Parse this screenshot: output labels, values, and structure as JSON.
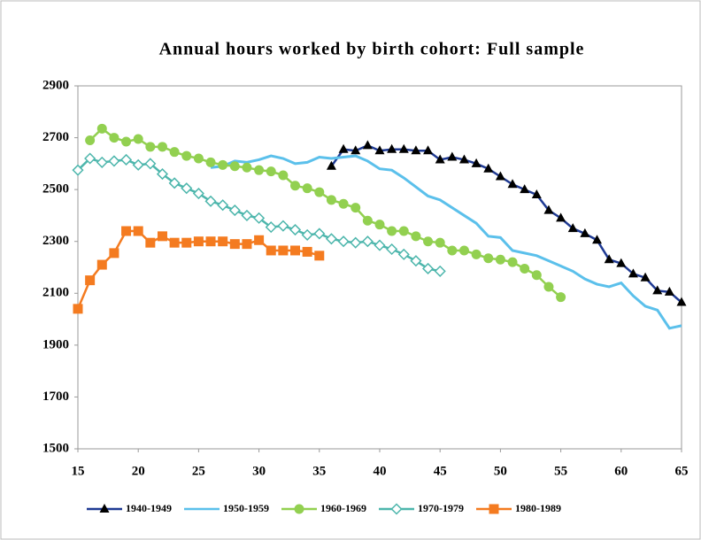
{
  "chart_data": {
    "type": "line",
    "title": "Annual hours worked by birth cohort: Full sample",
    "xlim": [
      15,
      65
    ],
    "xticks": [
      15,
      20,
      25,
      30,
      35,
      40,
      45,
      50,
      55,
      60,
      65
    ],
    "ylim": [
      1500,
      2900
    ],
    "yticks": [
      1500,
      1700,
      1900,
      2100,
      2300,
      2500,
      2700,
      2900
    ],
    "grid": false,
    "legend": "bottom",
    "series": [
      {
        "name": "1940-1949",
        "color": "#1f3a93",
        "marker": "triangle",
        "marker_color": "#000000",
        "x": [
          36,
          37,
          38,
          39,
          40,
          41,
          42,
          43,
          44,
          45,
          46,
          47,
          48,
          49,
          50,
          51,
          52,
          53,
          54,
          55,
          56,
          57,
          58,
          59,
          60,
          61,
          62,
          63,
          64,
          65
        ],
        "values": [
          2590,
          2655,
          2650,
          2670,
          2650,
          2655,
          2655,
          2650,
          2650,
          2615,
          2625,
          2615,
          2600,
          2580,
          2550,
          2520,
          2500,
          2480,
          2420,
          2390,
          2350,
          2330,
          2305,
          2230,
          2215,
          2175,
          2160,
          2110,
          2105,
          2065
        ]
      },
      {
        "name": "1950-1959",
        "color": "#5bc0eb",
        "marker": "none",
        "marker_color": "#5bc0eb",
        "x": [
          26,
          27,
          28,
          29,
          30,
          31,
          32,
          33,
          34,
          35,
          36,
          37,
          38,
          39,
          40,
          41,
          42,
          43,
          44,
          45,
          46,
          47,
          48,
          49,
          50,
          51,
          52,
          53,
          54,
          55,
          56,
          57,
          58,
          59,
          60,
          61,
          62,
          63,
          64,
          65
        ],
        "values": [
          2585,
          2590,
          2610,
          2605,
          2615,
          2630,
          2620,
          2600,
          2605,
          2625,
          2620,
          2625,
          2630,
          2610,
          2580,
          2575,
          2545,
          2510,
          2475,
          2460,
          2430,
          2400,
          2370,
          2320,
          2315,
          2265,
          2255,
          2245,
          2225,
          2205,
          2185,
          2155,
          2135,
          2125,
          2140,
          2090,
          2050,
          2035,
          1965,
          1975
        ]
      },
      {
        "name": "1960-1969",
        "color": "#92d050",
        "marker": "circle",
        "marker_color": "#92d050",
        "x": [
          16,
          17,
          18,
          19,
          20,
          21,
          22,
          23,
          24,
          25,
          26,
          27,
          28,
          29,
          30,
          31,
          32,
          33,
          34,
          35,
          36,
          37,
          38,
          39,
          40,
          41,
          42,
          43,
          44,
          45,
          46,
          47,
          48,
          49,
          50,
          51,
          52,
          53,
          54,
          55
        ],
        "values": [
          2690,
          2735,
          2700,
          2685,
          2695,
          2665,
          2665,
          2645,
          2630,
          2620,
          2605,
          2595,
          2590,
          2585,
          2575,
          2570,
          2555,
          2515,
          2505,
          2490,
          2460,
          2445,
          2430,
          2380,
          2365,
          2340,
          2340,
          2320,
          2300,
          2295,
          2265,
          2265,
          2250,
          2235,
          2230,
          2220,
          2195,
          2170,
          2125,
          2085
        ]
      },
      {
        "name": "1970-1979",
        "color": "#4db6ac",
        "marker": "diamond",
        "marker_color": "#4db6ac",
        "x": [
          15,
          16,
          17,
          18,
          19,
          20,
          21,
          22,
          23,
          24,
          25,
          26,
          27,
          28,
          29,
          30,
          31,
          32,
          33,
          34,
          35,
          36,
          37,
          38,
          39,
          40,
          41,
          42,
          43,
          44,
          45
        ],
        "values": [
          2575,
          2620,
          2605,
          2610,
          2615,
          2595,
          2600,
          2560,
          2525,
          2505,
          2485,
          2455,
          2440,
          2420,
          2400,
          2390,
          2355,
          2360,
          2345,
          2325,
          2330,
          2310,
          2300,
          2295,
          2300,
          2285,
          2270,
          2250,
          2225,
          2195,
          2185
        ]
      },
      {
        "name": "1980-1989",
        "color": "#f47b20",
        "marker": "square",
        "marker_color": "#f47b20",
        "x": [
          15,
          16,
          17,
          18,
          19,
          20,
          21,
          22,
          23,
          24,
          25,
          26,
          27,
          28,
          29,
          30,
          31,
          32,
          33,
          34,
          35
        ],
        "values": [
          2040,
          2150,
          2210,
          2255,
          2340,
          2340,
          2295,
          2320,
          2295,
          2295,
          2300,
          2300,
          2300,
          2290,
          2290,
          2305,
          2265,
          2265,
          2265,
          2260,
          2245
        ]
      }
    ]
  }
}
